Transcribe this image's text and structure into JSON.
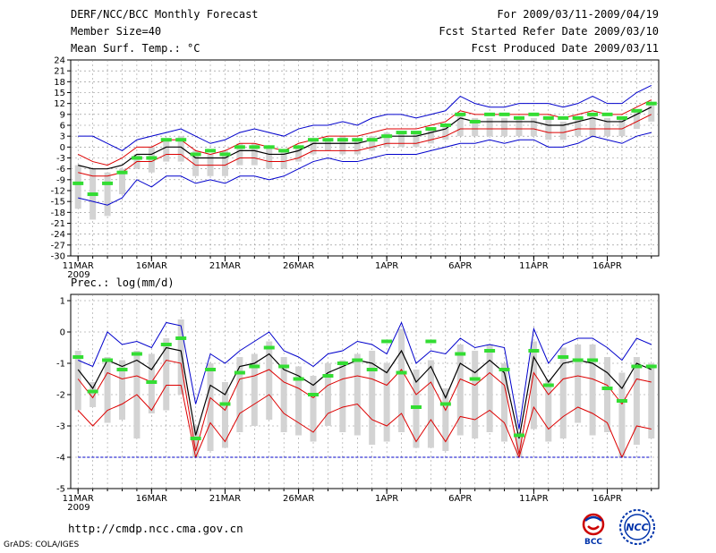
{
  "header": {
    "title": "DERF/NCC/BCC Monthly Forecast",
    "member": "Member Size=40",
    "variable": "Mean Surf. Temp.: °C",
    "period": "For 2009/03/11-2009/04/19",
    "started": "Fcst Started Refer Date 2009/03/10",
    "produced": "Fcst Produced Date 2009/03/11"
  },
  "footer": {
    "url": "http://cmdp.ncc.cma.gov.cn",
    "grads": "GrADS: COLA/IGES",
    "logo_bcc": "BCC",
    "logo_ncc": "NCC"
  },
  "colors": {
    "box": "#d3d3d3",
    "obs": "#33dd33",
    "mean": "#000000",
    "inner": "#dd0000",
    "outer": "#0000cc",
    "grid": "#888888"
  },
  "chart_data": [
    {
      "type": "line",
      "title": "Mean Surf. Temp.: °C",
      "x_tick_labels": [
        "11MAR",
        "16MAR",
        "21MAR",
        "26MAR",
        "1APR",
        "6APR",
        "11APR",
        "16APR"
      ],
      "x_tick_days": [
        1,
        6,
        11,
        16,
        22,
        27,
        32,
        37
      ],
      "year_label": "2009",
      "y_ticks": [
        24,
        21,
        18,
        15,
        12,
        9,
        6,
        3,
        0,
        -3,
        -6,
        -9,
        -12,
        -15,
        -18,
        -21,
        -24,
        -27,
        -30
      ],
      "ylim": [
        -30,
        24
      ],
      "days": 40,
      "series": [
        {
          "name": "max",
          "values": [
            3,
            3,
            1,
            -1,
            2,
            3,
            4,
            5,
            3,
            1,
            2,
            4,
            5,
            4,
            3,
            5,
            6,
            6,
            7,
            6,
            8,
            9,
            9,
            8,
            9,
            10,
            14,
            12,
            11,
            11,
            12,
            12,
            12,
            11,
            12,
            14,
            12,
            12,
            15,
            17
          ]
        },
        {
          "name": "upper",
          "values": [
            -2,
            -4,
            -5,
            -3,
            0,
            0,
            2,
            2,
            -1,
            -2,
            -1,
            1,
            1,
            0,
            -1,
            1,
            2,
            3,
            3,
            3,
            4,
            5,
            5,
            5,
            6,
            7,
            10,
            9,
            9,
            9,
            9,
            9,
            9,
            8,
            9,
            10,
            9,
            9,
            11,
            13
          ]
        },
        {
          "name": "mean",
          "values": [
            -5,
            -6,
            -6,
            -5,
            -2,
            -2,
            0,
            0,
            -3,
            -3,
            -3,
            -1,
            -1,
            -2,
            -2,
            -1,
            1,
            1,
            1,
            1,
            2,
            3,
            3,
            3,
            4,
            5,
            8,
            7,
            7,
            7,
            7,
            7,
            6,
            6,
            7,
            8,
            7,
            7,
            9,
            11
          ]
        },
        {
          "name": "lower",
          "values": [
            -7,
            -8,
            -8,
            -7,
            -4,
            -4,
            -2,
            -2,
            -5,
            -5,
            -5,
            -3,
            -3,
            -4,
            -4,
            -3,
            -1,
            -1,
            -1,
            -1,
            0,
            1,
            1,
            1,
            2,
            3,
            5,
            5,
            5,
            5,
            5,
            5,
            4,
            4,
            5,
            5,
            5,
            5,
            7,
            9
          ]
        },
        {
          "name": "min",
          "values": [
            -14,
            -15,
            -16,
            -14,
            -9,
            -11,
            -8,
            -8,
            -10,
            -9,
            -10,
            -8,
            -8,
            -9,
            -8,
            -6,
            -4,
            -3,
            -4,
            -4,
            -3,
            -2,
            -2,
            -2,
            -1,
            0,
            1,
            1,
            2,
            1,
            2,
            2,
            0,
            0,
            1,
            3,
            2,
            1,
            3,
            4
          ]
        },
        {
          "name": "box_top",
          "values": [
            -5,
            -6,
            -7,
            -6,
            -2,
            0,
            2,
            3,
            -1,
            -2,
            -1,
            1,
            1,
            0,
            -1,
            0,
            2,
            2,
            3,
            2,
            3,
            4,
            4,
            4,
            5,
            6,
            9,
            8,
            8,
            8,
            8,
            8,
            8,
            7,
            8,
            9,
            8,
            8,
            10,
            12
          ]
        },
        {
          "name": "box_bottom",
          "values": [
            -17,
            -20,
            -19,
            -13,
            -6,
            -7,
            -4,
            -4,
            -8,
            -8,
            -8,
            -5,
            -5,
            -6,
            -6,
            -4,
            -2,
            -1,
            -2,
            -2,
            -1,
            0,
            0,
            0,
            1,
            2,
            3,
            3,
            3,
            3,
            3,
            3,
            2,
            2,
            3,
            3,
            3,
            3,
            5,
            7
          ]
        },
        {
          "name": "observed",
          "values": [
            -10,
            -13,
            -10,
            -7,
            -3,
            -3,
            2,
            2,
            -2,
            -1,
            -2,
            0,
            0,
            0,
            -1,
            0,
            2,
            2,
            2,
            2,
            2,
            3,
            4,
            4,
            5,
            6,
            9,
            7,
            9,
            9,
            8,
            9,
            8,
            8,
            8,
            9,
            9,
            8,
            10,
            12
          ]
        }
      ]
    },
    {
      "type": "line",
      "title": "Prec.: log(mm/d)",
      "x_tick_labels": [
        "11MAR",
        "16MAR",
        "21MAR",
        "26MAR",
        "1APR",
        "6APR",
        "11APR",
        "16APR"
      ],
      "x_tick_days": [
        1,
        6,
        11,
        16,
        22,
        27,
        32,
        37
      ],
      "year_label": "2009",
      "y_ticks": [
        1,
        0,
        -1,
        -2,
        -3,
        -4,
        -5
      ],
      "ylim": [
        -5,
        1.2
      ],
      "days": 40,
      "series": [
        {
          "name": "max",
          "values": [
            -0.9,
            -1.1,
            0,
            -0.4,
            -0.3,
            -0.5,
            0.3,
            0.2,
            -2.3,
            -0.7,
            -1.0,
            -0.6,
            -0.3,
            0,
            -0.6,
            -0.8,
            -1.1,
            -0.7,
            -0.6,
            -0.3,
            -0.4,
            -0.7,
            0.3,
            -1.0,
            -0.6,
            -0.7,
            -0.2,
            -0.5,
            -0.4,
            -0.5,
            -3.1,
            0.1,
            -1.0,
            -0.4,
            -0.2,
            -0.2,
            -0.5,
            -0.9,
            -0.2,
            -0.4
          ]
        },
        {
          "name": "mean",
          "values": [
            -1.2,
            -1.8,
            -0.9,
            -1.1,
            -0.9,
            -1.2,
            -0.5,
            -0.6,
            -3.3,
            -1.7,
            -2.0,
            -1.1,
            -1.0,
            -0.7,
            -1.2,
            -1.4,
            -1.7,
            -1.3,
            -1.1,
            -0.9,
            -1.0,
            -1.3,
            -0.6,
            -1.6,
            -1.1,
            -2.1,
            -1.0,
            -1.3,
            -0.9,
            -1.3,
            -3.4,
            -0.8,
            -1.6,
            -1.0,
            -0.9,
            -1.0,
            -1.3,
            -1.8,
            -1.0,
            -1.2
          ]
        },
        {
          "name": "inner1",
          "values": [
            -1.5,
            -2.1,
            -1.3,
            -1.5,
            -1.4,
            -1.6,
            -0.9,
            -1.0,
            -3.8,
            -2.1,
            -2.5,
            -1.5,
            -1.4,
            -1.2,
            -1.6,
            -1.8,
            -2.1,
            -1.7,
            -1.5,
            -1.4,
            -1.5,
            -1.7,
            -1.2,
            -2.0,
            -1.6,
            -2.5,
            -1.5,
            -1.7,
            -1.3,
            -1.7,
            -3.9,
            -1.3,
            -2.0,
            -1.5,
            -1.4,
            -1.5,
            -1.7,
            -2.3,
            -1.5,
            -1.6
          ]
        },
        {
          "name": "inner2",
          "values": [
            -2.5,
            -3.0,
            -2.5,
            -2.3,
            -2.0,
            -2.5,
            -1.7,
            -1.7,
            -4.0,
            -2.9,
            -3.5,
            -2.6,
            -2.3,
            -2.0,
            -2.6,
            -2.9,
            -3.2,
            -2.6,
            -2.4,
            -2.3,
            -2.8,
            -3.0,
            -2.6,
            -3.5,
            -2.8,
            -3.5,
            -2.7,
            -2.8,
            -2.5,
            -2.9,
            -4.0,
            -2.4,
            -3.1,
            -2.7,
            -2.4,
            -2.6,
            -2.9,
            -4.0,
            -3.0,
            -3.1
          ]
        },
        {
          "name": "min_floor",
          "values": [
            -4,
            -4,
            -4,
            -4,
            -4,
            -4,
            -4,
            -4,
            -4,
            -4,
            -4,
            -4,
            -4,
            -4,
            -4,
            -4,
            -4,
            -4,
            -4,
            -4,
            -4,
            -4,
            -4,
            -4,
            -4,
            -4,
            -4,
            -4,
            -4,
            -4,
            -4,
            -4,
            -4,
            -4,
            -4,
            -4,
            -4,
            -4,
            -4,
            -4
          ]
        },
        {
          "name": "box_top",
          "values": [
            -0.6,
            -1.6,
            -0.8,
            -0.9,
            -0.6,
            -0.7,
            -0.2,
            0.4,
            -3.0,
            -1.0,
            -1.6,
            -0.8,
            -0.7,
            -0.3,
            -0.8,
            -1.1,
            -1.4,
            -1.0,
            -0.9,
            -0.7,
            -0.6,
            -1.0,
            0.1,
            -1.2,
            -0.9,
            -1.8,
            -0.4,
            -0.6,
            -0.4,
            -1.0,
            -3.2,
            -0.3,
            -1.5,
            -0.5,
            -0.4,
            -0.4,
            -0.8,
            -1.3,
            -0.8,
            -1.0
          ]
        },
        {
          "name": "box_bottom",
          "values": [
            -2.5,
            -2.4,
            -2.9,
            -2.8,
            -3.4,
            -2.6,
            -2.5,
            -2.0,
            -4.0,
            -3.8,
            -3.7,
            -3.2,
            -3.0,
            -2.8,
            -3.2,
            -3.3,
            -3.5,
            -3.0,
            -3.2,
            -3.3,
            -3.6,
            -3.5,
            -3.2,
            -3.7,
            -3.7,
            -3.8,
            -3.3,
            -3.4,
            -3.2,
            -3.5,
            -4.0,
            -3.1,
            -3.5,
            -3.4,
            -2.9,
            -3.3,
            -3.2,
            -4.0,
            -3.6,
            -3.4
          ]
        },
        {
          "name": "observed",
          "values": [
            -0.8,
            -1.9,
            -0.9,
            -1.2,
            -0.7,
            -1.6,
            -0.4,
            -0.2,
            -3.4,
            -1.2,
            -2.3,
            -1.3,
            -1.1,
            -0.5,
            -1.1,
            -1.5,
            -2.0,
            -1.4,
            -1.0,
            -0.9,
            -1.2,
            -0.3,
            -1.3,
            -2.4,
            -0.3,
            -2.3,
            -0.7,
            -1.5,
            -0.6,
            -1.2,
            -3.3,
            -0.6,
            -1.7,
            -0.8,
            -0.9,
            -0.9,
            -1.8,
            -2.2,
            -1.1,
            -1.1
          ]
        }
      ]
    }
  ]
}
